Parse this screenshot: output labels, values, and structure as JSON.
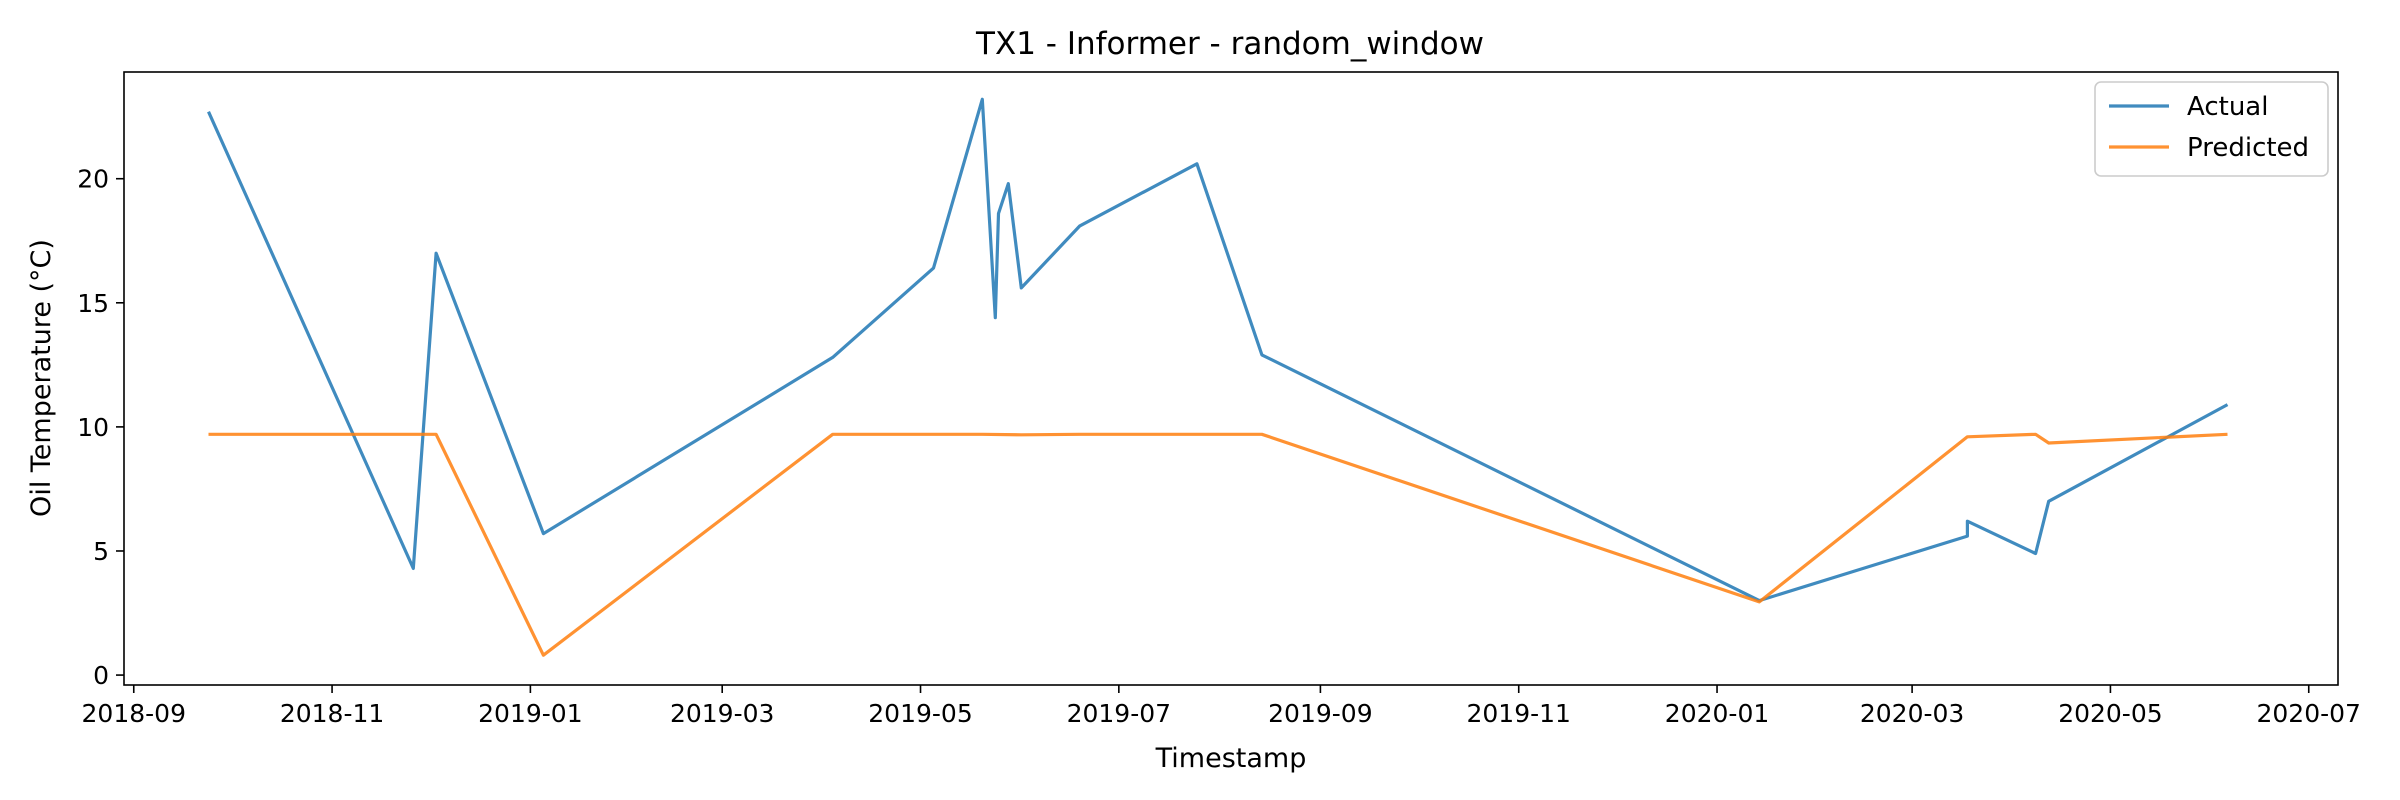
{
  "chart_data": {
    "type": "line",
    "title": "TX1 - Informer - random_window",
    "xlabel": "Timestamp",
    "ylabel": "Oil Temperature (°C)",
    "xlim": [
      "2018-08-29",
      "2020-07-10"
    ],
    "ylim": [
      -0.4,
      24.3
    ],
    "x_ticks": [
      "2018-09",
      "2018-11",
      "2019-01",
      "2019-03",
      "2019-05",
      "2019-07",
      "2019-09",
      "2019-11",
      "2020-01",
      "2020-03",
      "2020-05",
      "2020-07"
    ],
    "y_ticks": [
      "0",
      "5",
      "10",
      "15",
      "20"
    ],
    "grid": false,
    "legend_position": "top-right",
    "series": [
      {
        "name": "Actual",
        "color": "#1f77b4",
        "points": [
          [
            "2018-09-24",
            22.7
          ],
          [
            "2018-11-26",
            4.3
          ],
          [
            "2018-12-03",
            17.0
          ],
          [
            "2019-01-05",
            5.7
          ],
          [
            "2019-04-04",
            12.8
          ],
          [
            "2019-05-05",
            16.4
          ],
          [
            "2019-05-20",
            23.2
          ],
          [
            "2019-05-24",
            14.4
          ],
          [
            "2019-05-25",
            18.6
          ],
          [
            "2019-05-28",
            19.8
          ],
          [
            "2019-06-01",
            15.6
          ],
          [
            "2019-06-19",
            18.1
          ],
          [
            "2019-07-25",
            20.6
          ],
          [
            "2019-08-14",
            12.9
          ],
          [
            "2020-01-14",
            3.0
          ],
          [
            "2020-03-18",
            5.6
          ],
          [
            "2020-03-18",
            6.2
          ],
          [
            "2020-04-08",
            4.9
          ],
          [
            "2020-04-12",
            7.0
          ],
          [
            "2020-06-06",
            10.9
          ]
        ]
      },
      {
        "name": "Predicted",
        "color": "#ff7f0e",
        "points": [
          [
            "2018-09-24",
            9.7
          ],
          [
            "2018-12-03",
            9.7
          ],
          [
            "2019-01-05",
            0.8
          ],
          [
            "2019-04-04",
            9.7
          ],
          [
            "2019-05-20",
            9.7
          ],
          [
            "2019-06-01",
            9.68
          ],
          [
            "2019-06-19",
            9.7
          ],
          [
            "2019-08-14",
            9.7
          ],
          [
            "2020-01-14",
            2.95
          ],
          [
            "2020-03-18",
            9.6
          ],
          [
            "2020-04-08",
            9.7
          ],
          [
            "2020-04-12",
            9.35
          ],
          [
            "2020-06-06",
            9.7
          ]
        ]
      }
    ]
  }
}
